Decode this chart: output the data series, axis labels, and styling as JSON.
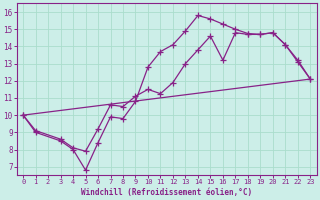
{
  "xlabel": "Windchill (Refroidissement éolien,°C)",
  "background_color": "#cceee8",
  "line_color": "#882288",
  "xlim": [
    -0.5,
    23.5
  ],
  "ylim": [
    6.5,
    16.5
  ],
  "xticks": [
    0,
    1,
    2,
    3,
    4,
    5,
    6,
    7,
    8,
    9,
    10,
    11,
    12,
    13,
    14,
    15,
    16,
    17,
    18,
    19,
    20,
    21,
    22,
    23
  ],
  "yticks": [
    7,
    8,
    9,
    10,
    11,
    12,
    13,
    14,
    15,
    16
  ],
  "curve1_x": [
    0,
    1,
    3,
    4,
    5,
    6,
    7,
    8,
    9,
    10,
    11,
    12,
    13,
    14,
    15,
    16,
    17,
    18,
    19,
    20,
    21,
    22,
    23
  ],
  "curve1_y": [
    10,
    9,
    8.5,
    8.0,
    6.8,
    8.4,
    9.9,
    9.8,
    10.8,
    12.8,
    13.7,
    14.1,
    14.9,
    15.8,
    15.6,
    15.3,
    15.0,
    14.75,
    14.7,
    14.8,
    14.1,
    13.1,
    12.1
  ],
  "curve2_x": [
    0,
    1,
    3,
    4,
    5,
    6,
    7,
    8,
    9,
    10,
    11,
    12,
    13,
    14,
    15,
    16,
    17,
    18,
    19,
    20,
    21,
    22,
    23
  ],
  "curve2_y": [
    10,
    9.1,
    8.6,
    8.1,
    7.9,
    9.2,
    10.6,
    10.5,
    11.1,
    11.5,
    11.25,
    11.9,
    13.0,
    13.8,
    14.6,
    13.2,
    14.8,
    14.7,
    14.7,
    14.8,
    14.1,
    13.2,
    12.1
  ],
  "line_x": [
    0,
    23
  ],
  "line_y": [
    10,
    12.1
  ],
  "grid_color": "#aaddcc",
  "spine_color": "#882288"
}
